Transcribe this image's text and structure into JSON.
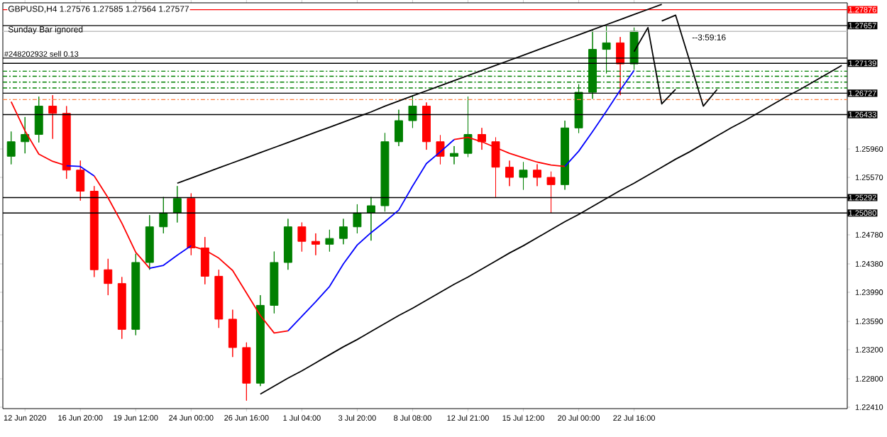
{
  "chart_data": {
    "type": "candlestick",
    "title": "GBPUSD,H4  1.27576 1.27585 1.27564 1.27577",
    "annotations": [
      "Sunday Bar ignored",
      "--3:59:16",
      {
        "text": "#248202932 sell 0.13",
        "y": 1.2721
      }
    ],
    "categories": [
      null,
      "12 Jun 2020",
      null,
      null,
      null,
      "16 Jun 20:00",
      null,
      null,
      null,
      "19 Jun 12:00",
      null,
      null,
      null,
      "24 Jun 00:00",
      null,
      null,
      null,
      "26 Jun 16:00",
      null,
      null,
      null,
      "1 Jul 04:00",
      null,
      null,
      null,
      "3 Jul 20:00",
      null,
      null,
      null,
      "8 Jul 08:00",
      null,
      null,
      null,
      "12 Jul 21:00",
      null,
      null,
      null,
      "15 Jul 12:00",
      null,
      null,
      null,
      "20 Jul 00:00",
      null,
      null,
      null,
      "22 Jul 16:00",
      null,
      null,
      null,
      null,
      null,
      null,
      null,
      null,
      null,
      null,
      null,
      null,
      null,
      null,
      null
    ],
    "ohlc": [
      [
        1.2586,
        1.262,
        1.2575,
        1.2606
      ],
      [
        1.2606,
        1.264,
        1.259,
        1.2616
      ],
      [
        1.2616,
        1.2668,
        1.2605,
        1.2655
      ],
      [
        1.2655,
        1.267,
        1.261,
        1.2645
      ],
      [
        1.2645,
        1.2655,
        1.2555,
        1.2567
      ],
      [
        1.2567,
        1.258,
        1.2525,
        1.2538
      ],
      [
        1.2538,
        1.2545,
        1.242,
        1.243
      ],
      [
        1.243,
        1.2445,
        1.2395,
        1.2411
      ],
      [
        1.2411,
        1.242,
        1.2335,
        1.2348
      ],
      [
        1.2348,
        1.2452,
        1.234,
        1.244
      ],
      [
        1.244,
        1.2505,
        1.243,
        1.2489
      ],
      [
        1.2489,
        1.253,
        1.248,
        1.2508
      ],
      [
        1.2508,
        1.2545,
        1.2495,
        1.2528
      ],
      [
        1.2528,
        1.2535,
        1.245,
        1.246
      ],
      [
        1.246,
        1.2475,
        1.241,
        1.2421
      ],
      [
        1.2421,
        1.243,
        1.235,
        1.2362
      ],
      [
        1.2362,
        1.2375,
        1.231,
        1.2323
      ],
      [
        1.2323,
        1.233,
        1.225,
        1.2274
      ],
      [
        1.2274,
        1.2395,
        1.227,
        1.2381
      ],
      [
        1.2381,
        1.2455,
        1.237,
        1.244
      ],
      [
        1.244,
        1.25,
        1.243,
        1.2489
      ],
      [
        1.2489,
        1.2495,
        1.2455,
        1.2469
      ],
      [
        1.2469,
        1.248,
        1.245,
        1.2465
      ],
      [
        1.2465,
        1.2485,
        1.2455,
        1.2473
      ],
      [
        1.2473,
        1.25,
        1.2465,
        1.2489
      ],
      [
        1.2489,
        1.252,
        1.248,
        1.2508
      ],
      [
        1.2508,
        1.253,
        1.247,
        1.2518
      ],
      [
        1.2518,
        1.2618,
        1.251,
        1.2606
      ],
      [
        1.2606,
        1.265,
        1.26,
        1.2635
      ],
      [
        1.2635,
        1.267,
        1.2625,
        1.2655
      ],
      [
        1.2655,
        1.266,
        1.2595,
        1.2606
      ],
      [
        1.2606,
        1.2615,
        1.2575,
        1.2586
      ],
      [
        1.2586,
        1.26,
        1.2575,
        1.259
      ],
      [
        1.259,
        1.2668,
        1.2585,
        1.2616
      ],
      [
        1.2616,
        1.2625,
        1.2595,
        1.2606
      ],
      [
        1.2606,
        1.2612,
        1.253,
        1.2571
      ],
      [
        1.2571,
        1.258,
        1.2545,
        1.2557
      ],
      [
        1.2557,
        1.2578,
        1.254,
        1.2567
      ],
      [
        1.2567,
        1.2575,
        1.2545,
        1.2557
      ],
      [
        1.2557,
        1.2565,
        1.2508,
        1.2547
      ],
      [
        1.2547,
        1.2635,
        1.254,
        1.2625
      ],
      [
        1.2625,
        1.2685,
        1.2618,
        1.2674
      ],
      [
        1.2674,
        1.276,
        1.2665,
        1.2733
      ],
      [
        1.2733,
        1.2765,
        1.27,
        1.2742
      ],
      [
        1.2742,
        1.275,
        1.267,
        1.2713
      ],
      [
        1.2713,
        1.2763,
        1.2705,
        1.2758
      ],
      null,
      null,
      null,
      null,
      null,
      null,
      null,
      null,
      null,
      null,
      null,
      null,
      null,
      null,
      null
    ],
    "colors": [
      "#008000",
      "#008000",
      "#008000",
      "#ff0000",
      "#ff0000",
      "#ff0000",
      "#ff0000",
      "#ff0000",
      "#ff0000",
      "#008000",
      "#008000",
      "#008000",
      "#008000",
      "#ff0000",
      "#ff0000",
      "#ff0000",
      "#ff0000",
      "#ff0000",
      "#008000",
      "#008000",
      "#008000",
      "#ff0000",
      "#ff0000",
      "#008000",
      "#008000",
      "#008000",
      "#008000",
      "#008000",
      "#008000",
      "#008000",
      "#ff0000",
      "#ff0000",
      "#008000",
      "#008000",
      "#ff0000",
      "#ff0000",
      "#ff0000",
      "#008000",
      "#ff0000",
      "#ff0000",
      "#008000",
      "#008000",
      "#008000",
      "#008000",
      "#ff0000",
      "#008000",
      null,
      null,
      null,
      null,
      null,
      null,
      null,
      null,
      null,
      null,
      null,
      null,
      null,
      null,
      null
    ],
    "series": [
      {
        "type": "line",
        "color": "#ff0000",
        "values": [
          1.2661,
          1.2621,
          1.2589,
          1.2579,
          1.2573,
          null,
          1.2559,
          1.2529,
          1.2494,
          1.2454,
          1.2432,
          null,
          null,
          1.2463,
          1.2457,
          1.2446,
          1.2429,
          1.2398,
          1.2367,
          1.2343,
          1.2346,
          null,
          null,
          null,
          null,
          null,
          null,
          null,
          null,
          null,
          null,
          null,
          1.2609,
          1.2612,
          1.2606,
          1.2598,
          1.259,
          1.2584,
          1.2578,
          1.2574,
          1.2572,
          null,
          null,
          null,
          null,
          null,
          null,
          null,
          null,
          null,
          null,
          null,
          null,
          null,
          null,
          null,
          null,
          null,
          null,
          null,
          null
        ]
      },
      {
        "type": "line",
        "color": "#0000ff",
        "values": [
          null,
          null,
          null,
          null,
          1.2573,
          1.2572,
          1.2559,
          null,
          null,
          null,
          1.2432,
          1.2436,
          1.245,
          1.2463,
          null,
          null,
          null,
          null,
          null,
          null,
          1.2346,
          1.2366,
          1.2386,
          1.2407,
          1.2438,
          1.2464,
          1.2481,
          1.2496,
          1.2512,
          1.2545,
          1.2576,
          1.2592,
          1.2609,
          null,
          null,
          null,
          null,
          null,
          null,
          null,
          1.2572,
          1.2593,
          1.262,
          1.2648,
          1.2677,
          1.2704,
          null,
          null,
          null,
          null,
          null,
          null,
          null,
          null,
          null,
          null,
          null,
          null,
          null,
          null,
          null
        ]
      },
      {
        "type": "line",
        "color": "#000000",
        "values": [
          null,
          null,
          null,
          null,
          null,
          null,
          null,
          null,
          null,
          null,
          null,
          null,
          1.2549,
          1.2556,
          1.2563,
          1.257,
          1.2577,
          1.2584,
          1.2591,
          1.2598,
          1.2605,
          1.2612,
          1.2619,
          1.2626,
          1.2633,
          1.264,
          1.2647,
          1.2655,
          1.2662,
          1.2669,
          1.2676,
          1.2683,
          1.269,
          1.2697,
          1.2704,
          1.2711,
          1.2718,
          1.2725,
          1.2732,
          1.2739,
          1.2746,
          1.2753,
          1.276,
          1.2767,
          1.2774,
          1.2781,
          1.2788,
          1.2795,
          null,
          null,
          null,
          null,
          null,
          null,
          null,
          null,
          null,
          null,
          null,
          null,
          null
        ]
      },
      {
        "type": "line",
        "color": "#000000",
        "values": [
          null,
          null,
          null,
          null,
          null,
          null,
          null,
          null,
          null,
          null,
          null,
          null,
          null,
          null,
          null,
          null,
          null,
          null,
          1.2259,
          1.227,
          1.2281,
          1.2291,
          1.2302,
          1.2313,
          1.2324,
          1.2334,
          1.2345,
          1.2356,
          1.2367,
          1.2377,
          1.2388,
          1.2399,
          1.241,
          1.242,
          1.2431,
          1.2442,
          1.2453,
          1.2463,
          1.2474,
          1.2485,
          1.2496,
          1.2506,
          1.2517,
          1.2528,
          1.2539,
          1.2549,
          1.256,
          1.2571,
          1.2582,
          1.2592,
          1.2603,
          1.2614,
          1.2625,
          1.2635,
          1.2646,
          1.2657,
          1.2668,
          1.2678,
          1.2689,
          1.27,
          1.2711
        ]
      },
      {
        "type": "line",
        "color": "#000000",
        "values": [
          null,
          null,
          null,
          null,
          null,
          null,
          null,
          null,
          null,
          null,
          null,
          null,
          null,
          null,
          null,
          null,
          null,
          null,
          null,
          null,
          null,
          null,
          null,
          null,
          null,
          null,
          null,
          null,
          null,
          null,
          null,
          null,
          null,
          null,
          null,
          null,
          null,
          null,
          null,
          null,
          null,
          null,
          null,
          null,
          null,
          1.273,
          1.2763,
          1.2658,
          1.2678,
          null,
          null,
          null,
          null,
          null,
          null,
          null,
          null,
          null,
          null,
          null,
          null
        ]
      },
      {
        "type": "line",
        "color": "#000000",
        "values": [
          null,
          null,
          null,
          null,
          null,
          null,
          null,
          null,
          null,
          null,
          null,
          null,
          null,
          null,
          null,
          null,
          null,
          null,
          null,
          null,
          null,
          null,
          null,
          null,
          null,
          null,
          null,
          null,
          null,
          null,
          null,
          null,
          null,
          null,
          null,
          null,
          null,
          null,
          null,
          null,
          null,
          null,
          null,
          null,
          null,
          null,
          null,
          1.2772,
          1.278,
          1.2718,
          1.2655,
          1.2678,
          null,
          null,
          null,
          null,
          null,
          null,
          null,
          null,
          null
        ]
      }
    ],
    "ref_lines": [
      {
        "axis": "y",
        "value": 1.27876,
        "color": "#ff0000",
        "line_style": "solid",
        "label": "1.27876"
      },
      {
        "axis": "y",
        "value": 1.27657,
        "color": "#000000",
        "line_style": "solid",
        "label": "1.27657"
      },
      {
        "axis": "y",
        "value": 1.27577,
        "color": "#c0c0c0",
        "line_style": "solid"
      },
      {
        "axis": "y",
        "value": 1.2721,
        "color": "#000000",
        "line_style": "solid"
      },
      {
        "axis": "y",
        "value": 1.27139,
        "color": "#000000",
        "line_style": "solid",
        "label": "1.27139"
      },
      {
        "axis": "y",
        "value": 1.2703,
        "color": "#008000",
        "line_style": "dashed"
      },
      {
        "axis": "y",
        "value": 1.2696,
        "color": "#008000",
        "line_style": "dashed"
      },
      {
        "axis": "y",
        "value": 1.2688,
        "color": "#008000",
        "line_style": "dashed"
      },
      {
        "axis": "y",
        "value": 1.268,
        "color": "#008000",
        "line_style": "dashed"
      },
      {
        "axis": "y",
        "value": 1.26727,
        "color": "#000000",
        "line_style": "solid",
        "label": "1.26727"
      },
      {
        "axis": "y",
        "value": 1.2664,
        "color": "#ff8040",
        "line_style": "dashed"
      },
      {
        "axis": "y",
        "value": 1.26433,
        "color": "#000000",
        "line_style": "solid",
        "label": "1.26433"
      },
      {
        "axis": "y",
        "value": 1.25292,
        "color": "#000000",
        "line_style": "solid",
        "label": "1.25292"
      },
      {
        "axis": "y",
        "value": 1.2508,
        "color": "#000000",
        "line_style": "solid",
        "label": "1.25080"
      }
    ],
    "ylim": [
      1.2239,
      1.2797
    ],
    "yticks": [
      {
        "value": 1.2241,
        "label": "1.22410"
      },
      {
        "value": 1.228,
        "label": "1.22800"
      },
      {
        "value": 1.232,
        "label": "1.23200"
      },
      {
        "value": 1.2359,
        "label": "1.23590"
      },
      {
        "value": 1.2399,
        "label": "1.23990"
      },
      {
        "value": 1.2438,
        "label": "1.24380"
      },
      {
        "value": 1.2478,
        "label": "1.24780"
      },
      {
        "value": 1.2557,
        "label": "1.25570"
      },
      {
        "value": 1.2596,
        "label": "1.25960"
      }
    ]
  }
}
